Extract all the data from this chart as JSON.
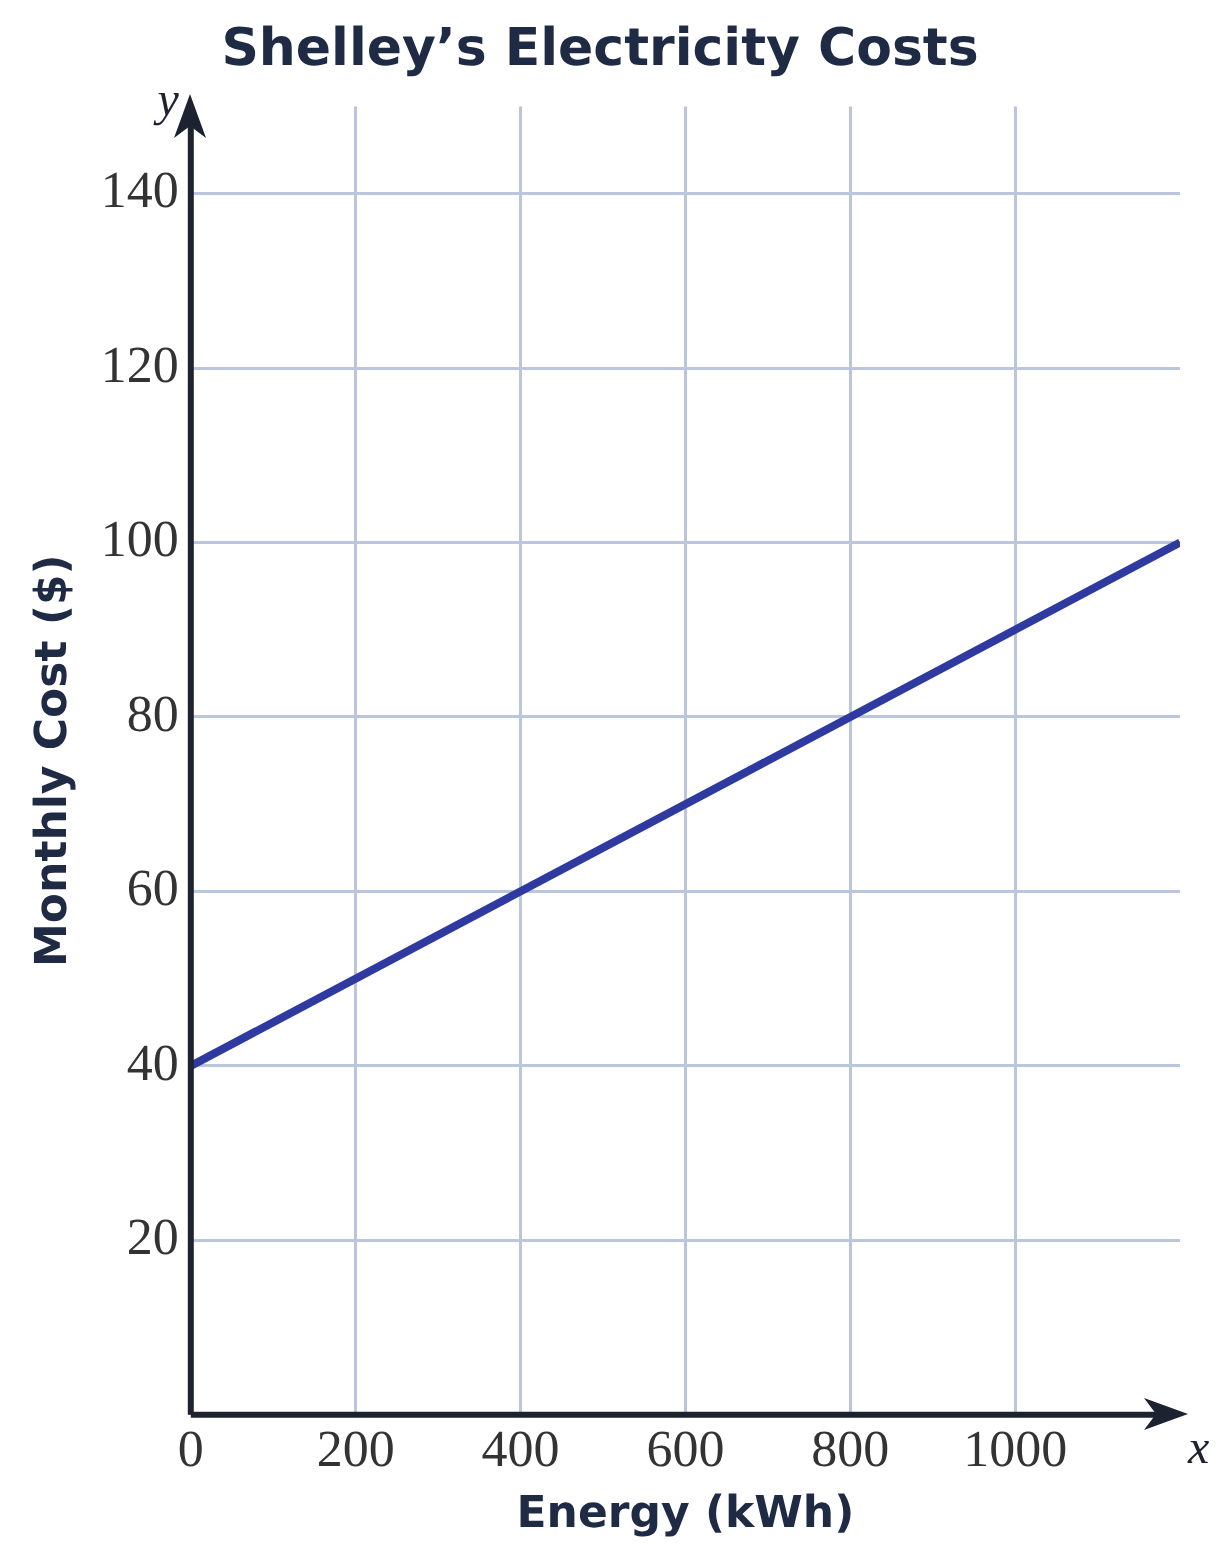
{
  "chart_data": {
    "type": "line",
    "title": "Shelley’s Electricity Costs",
    "xlabel": "Energy (kWh)",
    "ylabel": "Monthly Cost ($)",
    "annotations": [
      "x",
      "y"
    ],
    "x": [
      0,
      1200
    ],
    "series": [
      {
        "color": "#2f3aa0",
        "values": [
          40,
          100
        ]
      }
    ],
    "xlim": [
      0,
      1200
    ],
    "ylim": [
      0,
      150
    ],
    "xticks": [
      0,
      200,
      400,
      600,
      800,
      1000
    ],
    "yticks": [
      {
        "value": 0,
        "label": null
      },
      20,
      40,
      60,
      80,
      100,
      120,
      140
    ],
    "grid": true,
    "legend": false,
    "marker": "none",
    "line_style": "solid"
  }
}
